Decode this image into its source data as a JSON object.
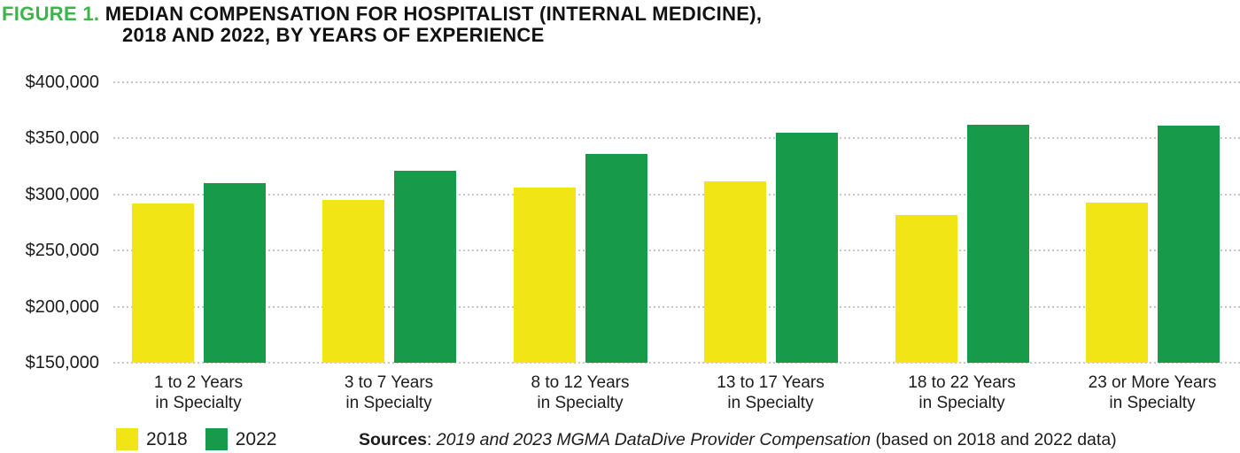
{
  "figure": {
    "label": "FIGURE 1.",
    "title_line1": "MEDIAN COMPENSATION FOR HOSPITALIST (INTERNAL MEDICINE),",
    "title_line2": "2018 AND 2022, BY YEARS OF EXPERIENCE"
  },
  "source": {
    "label": "Sources",
    "separator": ": ",
    "citation": "2019 and 2023 MGMA DataDive Provider Compensation",
    "suffix": " (based on 2018 and 2022 data)"
  },
  "colors": {
    "accent_green_title": "#3CB44A",
    "bar_yellow": "#F2E516",
    "bar_green": "#179A49",
    "gridline": "#C6C6C6"
  },
  "chart_data": {
    "type": "bar",
    "title": "MEDIAN COMPENSATION FOR HOSPITALIST (INTERNAL MEDICINE), 2018 AND 2022, BY YEARS OF EXPERIENCE",
    "categories": [
      "1 to 2 Years\nin Specialty",
      "3 to 7 Years\nin Specialty",
      "8 to 12 Years\nin Specialty",
      "13 to 17 Years\nin Specialty",
      "18 to 22 Years\nin Specialty",
      "23 or More Years\nin Specialty"
    ],
    "series": [
      {
        "name": "2018",
        "color": "#F2E516",
        "values": [
          292000,
          295000,
          306000,
          312000,
          282000,
          293000
        ]
      },
      {
        "name": "2022",
        "color": "#179A49",
        "values": [
          310000,
          321000,
          336000,
          355000,
          362000,
          361000
        ]
      }
    ],
    "xlabel": "",
    "ylabel": "",
    "ylim": [
      150000,
      400000
    ],
    "yticks": [
      {
        "value": 400000,
        "label": "$400,000"
      },
      {
        "value": 350000,
        "label": "$350,000"
      },
      {
        "value": 300000,
        "label": "$300,000"
      },
      {
        "value": 250000,
        "label": "$250,000"
      },
      {
        "value": 200000,
        "label": "$200,000"
      },
      {
        "value": 150000,
        "label": "$150,000"
      }
    ],
    "grid": "horizontal-dotted",
    "legend_position": "bottom-left"
  }
}
